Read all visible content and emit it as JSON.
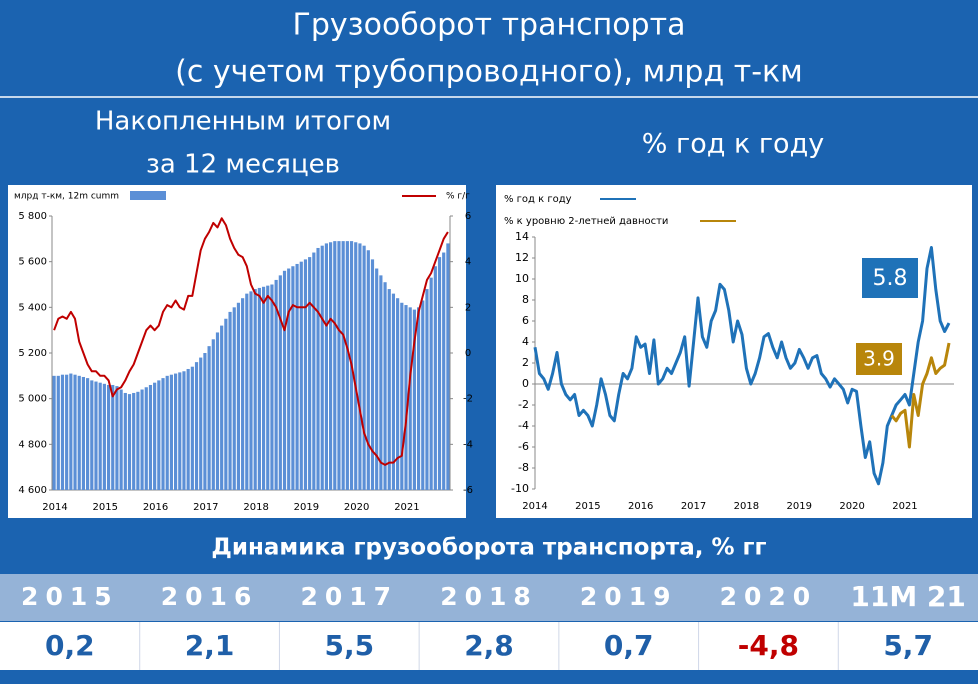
{
  "header": {
    "title": [
      "Грузооборот транспорта",
      "(с учетом трубопроводного), млрд т-км"
    ]
  },
  "panels": {
    "left": [
      "Накопленным итогом",
      "за 12 месяцев"
    ],
    "right": "% год к году"
  },
  "chart_data": [
    {
      "type": "bar-line",
      "categories": [
        "2014",
        null,
        null,
        null,
        null,
        null,
        null,
        null,
        null,
        null,
        null,
        null,
        "2015",
        null,
        null,
        null,
        null,
        null,
        null,
        null,
        null,
        null,
        null,
        null,
        "2016",
        null,
        null,
        null,
        null,
        null,
        null,
        null,
        null,
        null,
        null,
        null,
        "2017",
        null,
        null,
        null,
        null,
        null,
        null,
        null,
        null,
        null,
        null,
        null,
        "2018",
        null,
        null,
        null,
        null,
        null,
        null,
        null,
        null,
        null,
        null,
        null,
        "2019",
        null,
        null,
        null,
        null,
        null,
        null,
        null,
        null,
        null,
        null,
        null,
        "2020",
        null,
        null,
        null,
        null,
        null,
        null,
        null,
        null,
        null,
        null,
        null,
        "2021",
        null,
        null,
        null,
        null,
        null,
        null,
        null,
        null,
        null,
        null
      ],
      "series": [
        {
          "name": "млрд т-км, 12m cumm",
          "type": "bar",
          "color": "#5b8fd6",
          "values": [
            5100,
            5100,
            5105,
            5105,
            5110,
            5105,
            5100,
            5095,
            5090,
            5080,
            5075,
            5070,
            5065,
            5060,
            5060,
            5055,
            5040,
            5025,
            5020,
            5025,
            5030,
            5040,
            5050,
            5060,
            5070,
            5080,
            5090,
            5100,
            5105,
            5110,
            5115,
            5120,
            5130,
            5140,
            5160,
            5180,
            5200,
            5230,
            5260,
            5290,
            5320,
            5350,
            5380,
            5400,
            5420,
            5440,
            5460,
            5470,
            5480,
            5485,
            5490,
            5495,
            5500,
            5520,
            5540,
            5560,
            5570,
            5580,
            5590,
            5600,
            5610,
            5620,
            5640,
            5660,
            5670,
            5680,
            5685,
            5690,
            5690,
            5690,
            5690,
            5690,
            5685,
            5680,
            5670,
            5650,
            5610,
            5570,
            5540,
            5510,
            5480,
            5460,
            5440,
            5420,
            5410,
            5400,
            5390,
            5400,
            5430,
            5480,
            5530,
            5580,
            5620,
            5640,
            5680
          ]
        },
        {
          "name": "% г/г",
          "type": "line",
          "axis": "y2",
          "color": "#c00000",
          "values": [
            1.0,
            1.5,
            1.6,
            1.5,
            1.8,
            1.5,
            0.5,
            0,
            -0.5,
            -0.8,
            -0.8,
            -1.0,
            -1.0,
            -1.2,
            -1.9,
            -1.6,
            -1.5,
            -1.2,
            -0.8,
            -0.5,
            0,
            0.5,
            1.0,
            1.2,
            1.0,
            1.2,
            1.8,
            2.1,
            2.0,
            2.3,
            2.0,
            1.9,
            2.5,
            2.5,
            3.5,
            4.5,
            5.0,
            5.3,
            5.7,
            5.5,
            5.9,
            5.6,
            5.0,
            4.6,
            4.3,
            4.2,
            3.8,
            3.0,
            2.6,
            2.5,
            2.2,
            2.5,
            2.3,
            2.0,
            1.5,
            1.0,
            1.8,
            2.1,
            2.0,
            2.0,
            2.0,
            2.2,
            2.0,
            1.8,
            1.5,
            1.2,
            1.5,
            1.3,
            1.0,
            0.8,
            0.2,
            -0.5,
            -1.5,
            -2.5,
            -3.5,
            -4.0,
            -4.3,
            -4.5,
            -4.8,
            -4.9,
            -4.8,
            -4.8,
            -4.6,
            -4.5,
            -3.0,
            -1.0,
            0.5,
            1.8,
            2.5,
            3.2,
            3.5,
            4.0,
            4.5,
            5.0,
            5.3
          ]
        }
      ],
      "ylim": [
        4600,
        5800
      ],
      "yticks": [
        {
          "value": 4600,
          "label": "4 600"
        },
        {
          "value": 4800,
          "label": "4 800"
        },
        {
          "value": 5000,
          "label": "5 000"
        },
        {
          "value": 5200,
          "label": "5 200"
        },
        {
          "value": 5400,
          "label": "5 400"
        },
        {
          "value": 5600,
          "label": "5 600"
        },
        {
          "value": 5800,
          "label": "5 800"
        }
      ],
      "y2lim": [
        -6,
        6
      ],
      "y2ticks": [
        -6,
        -4,
        -2,
        0,
        2,
        4,
        6
      ]
    },
    {
      "type": "line",
      "categories": [
        "2014",
        null,
        null,
        null,
        null,
        null,
        null,
        null,
        null,
        null,
        null,
        null,
        "2015",
        null,
        null,
        null,
        null,
        null,
        null,
        null,
        null,
        null,
        null,
        null,
        "2016",
        null,
        null,
        null,
        null,
        null,
        null,
        null,
        null,
        null,
        null,
        null,
        "2017",
        null,
        null,
        null,
        null,
        null,
        null,
        null,
        null,
        null,
        null,
        null,
        "2018",
        null,
        null,
        null,
        null,
        null,
        null,
        null,
        null,
        null,
        null,
        null,
        "2019",
        null,
        null,
        null,
        null,
        null,
        null,
        null,
        null,
        null,
        null,
        null,
        "2020",
        null,
        null,
        null,
        null,
        null,
        null,
        null,
        null,
        null,
        null,
        null,
        "2021",
        null,
        null,
        null,
        null,
        null,
        null,
        null,
        null,
        null,
        null
      ],
      "series": [
        {
          "name": "% год к году",
          "color": "#1f72b8",
          "values": [
            3.5,
            1,
            0.5,
            -0.5,
            1,
            3,
            0,
            -1,
            -1.5,
            -1,
            -3,
            -2.5,
            -3,
            -4,
            -2,
            0.5,
            -1,
            -3,
            -3.5,
            -1,
            1,
            0.5,
            1.5,
            4.5,
            3.5,
            3.8,
            1,
            4.2,
            0,
            0.5,
            1.5,
            1,
            2,
            3,
            4.5,
            -0.2,
            4,
            8.2,
            4.5,
            3.5,
            6,
            7,
            9.5,
            9,
            7,
            4,
            6,
            4.7,
            1.5,
            0,
            1,
            2.5,
            4.5,
            4.8,
            3.5,
            2.5,
            4,
            2.5,
            1.5,
            2,
            3.3,
            2.5,
            1.5,
            2.5,
            2.7,
            1.0,
            0.5,
            -0.3,
            0.5,
            0,
            -0.5,
            -1.8,
            -0.5,
            -0.7,
            -4,
            -7,
            -5.5,
            -8.5,
            -9.5,
            -7.5,
            -4,
            -3,
            -2,
            -1.5,
            -1,
            -2,
            1,
            4,
            6,
            11,
            13,
            9,
            6,
            5,
            5.8
          ]
        },
        {
          "name": "% к уровню 2-летней давности",
          "color": "#b8860b",
          "values": [
            null,
            null,
            null,
            null,
            null,
            null,
            null,
            null,
            null,
            null,
            null,
            null,
            null,
            null,
            null,
            null,
            null,
            null,
            null,
            null,
            null,
            null,
            null,
            null,
            null,
            null,
            null,
            null,
            null,
            null,
            null,
            null,
            null,
            null,
            null,
            null,
            null,
            null,
            null,
            null,
            null,
            null,
            null,
            null,
            null,
            null,
            null,
            null,
            null,
            null,
            null,
            null,
            null,
            null,
            null,
            null,
            null,
            null,
            null,
            null,
            null,
            null,
            null,
            null,
            null,
            null,
            null,
            null,
            null,
            null,
            null,
            null,
            null,
            null,
            null,
            null,
            null,
            null,
            null,
            null,
            null,
            -3,
            -3.5,
            -2.8,
            -2.5,
            -6,
            -1,
            -3,
            0,
            1,
            2.5,
            1,
            1.5,
            1.8,
            3.9
          ]
        }
      ],
      "annotations": [
        "5.8",
        "3.9"
      ],
      "ylim": [
        -10,
        14
      ],
      "yticks": [
        -10,
        -8,
        -6,
        -4,
        -2,
        0,
        2,
        4,
        6,
        8,
        10,
        12,
        14
      ]
    }
  ],
  "table": {
    "title": "Динамика грузооборота транспорта, % гг",
    "columns": [
      "2015",
      "2016",
      "2017",
      "2018",
      "2019",
      "2020",
      "11M 21"
    ],
    "values": [
      "0,2",
      "2,1",
      "5,5",
      "2,8",
      "0,7",
      "-4,8",
      "5,7"
    ]
  }
}
